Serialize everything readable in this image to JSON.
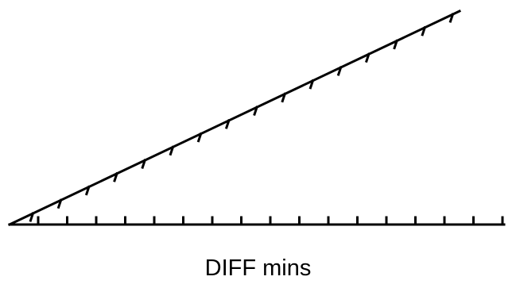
{
  "diagram": {
    "label": "DIFF mins",
    "baseline_tick_count": 17,
    "incline_tick_count": 16,
    "line_color": "#000000"
  }
}
